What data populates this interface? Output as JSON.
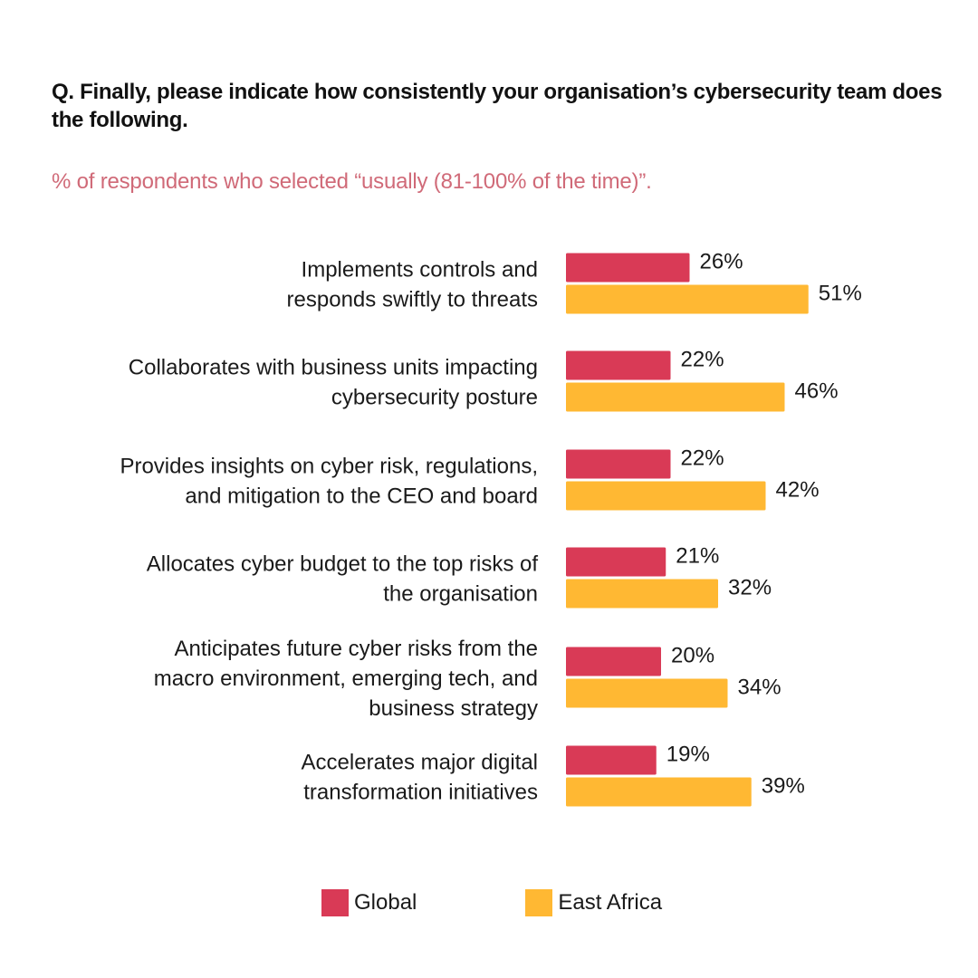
{
  "question": "Q. Finally, please indicate how consistently your organisation’s cybersecurity team does the following.",
  "subtitle": "% of respondents who selected “usually (81-100% of the time)”.",
  "colors": {
    "global": "#d93a56",
    "east_africa": "#ffb833",
    "subtitle": "#d06a78"
  },
  "chart_data": {
    "type": "bar",
    "orientation": "horizontal",
    "categories": [
      [
        "Implements controls and",
        "responds swiftly to threats"
      ],
      [
        "Collaborates with business units impacting",
        "cybersecurity posture"
      ],
      [
        "Provides insights on cyber risk, regulations,",
        "and mitigation to the CEO and board"
      ],
      [
        "Allocates cyber budget to the top risks of",
        "the organisation"
      ],
      [
        "Anticipates future cyber risks from the",
        "macro environment, emerging tech, and",
        "business strategy"
      ],
      [
        "Accelerates major digital",
        "transformation initiatives"
      ]
    ],
    "series": [
      {
        "name": "Global",
        "values": [
          26,
          22,
          22,
          21,
          20,
          19
        ],
        "labels": [
          "26%",
          "22%",
          "22%",
          "21%",
          "20%",
          "19%"
        ]
      },
      {
        "name": "East Africa",
        "values": [
          51,
          46,
          42,
          32,
          34,
          39
        ],
        "labels": [
          "51%",
          "46%",
          "42%",
          "32%",
          "34%",
          "39%"
        ]
      }
    ],
    "xlim": [
      0,
      100
    ],
    "legend": "bottom-center",
    "grid": false,
    "axes_visible": false
  }
}
